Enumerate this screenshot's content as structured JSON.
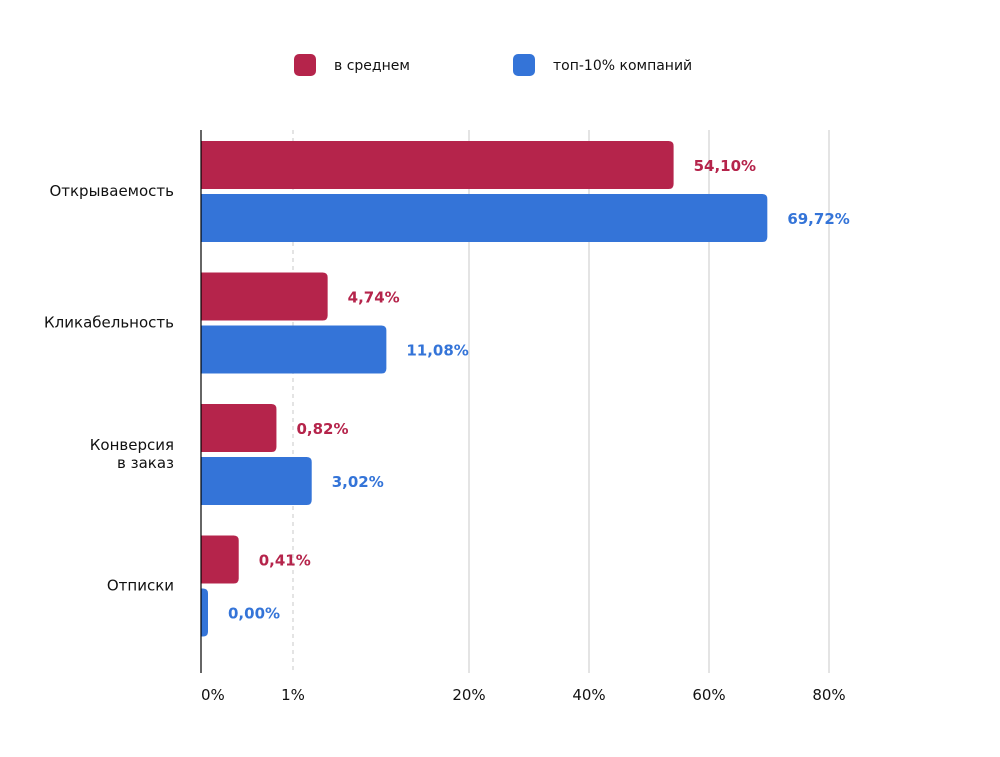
{
  "chart_data": {
    "type": "bar",
    "orientation": "horizontal",
    "categories": [
      [
        "Открываемость"
      ],
      [
        "Кликабельность"
      ],
      [
        "Конверсия",
        "в заказ"
      ],
      [
        "Отписки"
      ]
    ],
    "series": [
      {
        "name": "в среднем",
        "color": "#B5244B",
        "values": [
          54.1,
          4.74,
          0.82,
          0.41
        ],
        "labels": [
          "54,10%",
          "4,74%",
          "0,82%",
          "0,41%"
        ]
      },
      {
        "name": "топ-10% компаний",
        "color": "#3474D8",
        "values": [
          69.72,
          11.08,
          3.02,
          0.0
        ],
        "labels": [
          "69,72%",
          "11,08%",
          "3,02%",
          "0,00%"
        ]
      }
    ],
    "x_ticks": [
      0,
      1,
      20,
      40,
      60,
      80
    ],
    "x_tick_labels": [
      "0%",
      "1%",
      "20%",
      "40%",
      "60%",
      "80%"
    ],
    "x_scale": "piecewise (expanded 0–20%)",
    "xlim": [
      0,
      80
    ],
    "grid": true,
    "legend_position": "top"
  }
}
